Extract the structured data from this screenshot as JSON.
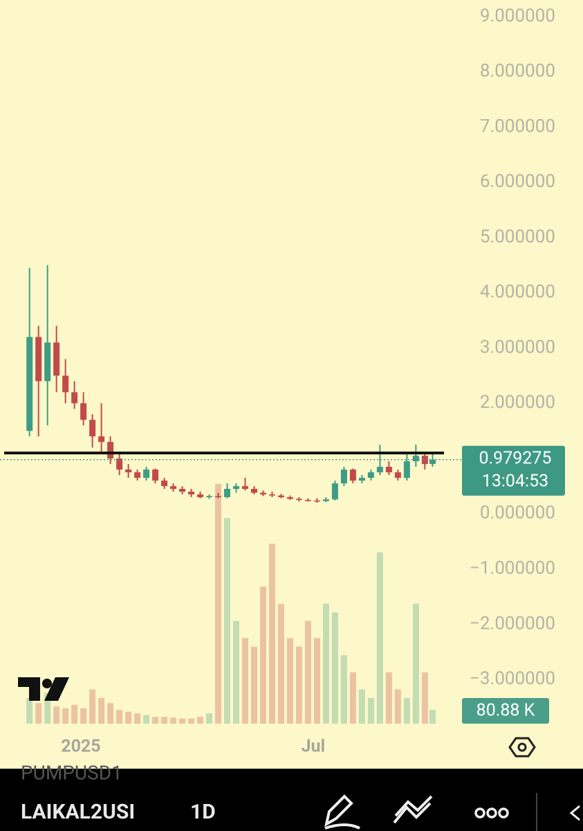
{
  "chart_data": {
    "type": "candlestick",
    "x": [
      -40,
      -33,
      -26,
      -19,
      -12,
      -5,
      2,
      9,
      16,
      23,
      30,
      37,
      44,
      51,
      58,
      65,
      72,
      79,
      86,
      93,
      100,
      107,
      114,
      121,
      128,
      135,
      142,
      149,
      156,
      163,
      170,
      177,
      184,
      191,
      198,
      205,
      212,
      219,
      226,
      233,
      240,
      247,
      254,
      261,
      268,
      274
    ],
    "open": [
      1.5,
      3.2,
      2.4,
      3.1,
      2.5,
      2.2,
      2.0,
      1.7,
      1.4,
      1.3,
      1.0,
      0.8,
      0.75,
      0.65,
      0.8,
      0.6,
      0.5,
      0.45,
      0.4,
      0.35,
      0.3,
      0.32,
      0.3,
      0.45,
      0.5,
      0.45,
      0.38,
      0.35,
      0.33,
      0.3,
      0.27,
      0.25,
      0.24,
      0.23,
      0.26,
      0.55,
      0.8,
      0.6,
      0.65,
      0.75,
      0.85,
      0.75,
      0.65,
      0.95,
      1.05,
      0.9
    ],
    "high": [
      4.45,
      3.4,
      4.5,
      3.4,
      2.8,
      2.4,
      2.2,
      1.8,
      2.0,
      1.4,
      1.1,
      0.9,
      0.8,
      0.85,
      0.82,
      0.65,
      0.55,
      0.5,
      0.45,
      0.4,
      0.35,
      0.38,
      0.55,
      0.55,
      0.65,
      0.5,
      0.42,
      0.4,
      0.36,
      0.33,
      0.3,
      0.28,
      0.28,
      0.3,
      0.6,
      0.85,
      0.82,
      0.7,
      0.8,
      1.25,
      0.95,
      0.8,
      1.1,
      1.25,
      1.1,
      1.1
    ],
    "low": [
      1.4,
      1.4,
      1.6,
      2.2,
      2.0,
      1.9,
      1.6,
      1.2,
      1.1,
      0.9,
      0.7,
      0.65,
      0.6,
      0.6,
      0.55,
      0.45,
      0.4,
      0.35,
      0.3,
      0.28,
      0.27,
      0.28,
      0.28,
      0.38,
      0.42,
      0.35,
      0.32,
      0.3,
      0.28,
      0.25,
      0.22,
      0.22,
      0.2,
      0.21,
      0.24,
      0.5,
      0.55,
      0.55,
      0.6,
      0.7,
      0.7,
      0.6,
      0.6,
      0.85,
      0.8,
      0.85
    ],
    "close": [
      3.2,
      2.4,
      3.1,
      2.5,
      2.2,
      2.0,
      1.7,
      1.4,
      1.3,
      1.0,
      0.8,
      0.75,
      0.65,
      0.8,
      0.6,
      0.5,
      0.45,
      0.4,
      0.35,
      0.3,
      0.32,
      0.3,
      0.45,
      0.5,
      0.45,
      0.38,
      0.35,
      0.33,
      0.3,
      0.27,
      0.25,
      0.24,
      0.23,
      0.26,
      0.55,
      0.8,
      0.6,
      0.65,
      0.75,
      0.85,
      0.75,
      0.65,
      0.95,
      1.05,
      0.9,
      0.979275
    ],
    "up_color": "#3f9c86",
    "down_color": "#c24a4b",
    "xlim": [
      -63,
      292.6
    ],
    "xticks": [
      {
        "value": 0,
        "label": "2025"
      },
      {
        "value": 181,
        "label": "Jul"
      }
    ],
    "ylim": [
      -3.8,
      9.3
    ],
    "yticks": [
      {
        "value": 9,
        "label": "9.000000"
      },
      {
        "value": 8,
        "label": "8.000000"
      },
      {
        "value": 7,
        "label": "7.000000"
      },
      {
        "value": 6,
        "label": "6.000000"
      },
      {
        "value": 5,
        "label": "5.000000"
      },
      {
        "value": 4,
        "label": "4.000000"
      },
      {
        "value": 3,
        "label": "3.000000"
      },
      {
        "value": 2,
        "label": "2.000000"
      },
      {
        "value": 0,
        "label": "0.000000"
      },
      {
        "value": -1,
        "label": "−1.000000"
      },
      {
        "value": -2,
        "label": "−2.000000"
      },
      {
        "value": -3,
        "label": "−3.000000"
      }
    ],
    "horizontal_line": 1.1,
    "last_price": 0.979275,
    "countdown": "13:04:53",
    "volume": {
      "values": [
        150,
        120,
        180,
        100,
        90,
        110,
        90,
        200,
        150,
        120,
        80,
        70,
        60,
        50,
        40,
        40,
        35,
        30,
        30,
        40,
        60,
        1400,
        1200,
        600,
        500,
        450,
        800,
        1050,
        700,
        500,
        450,
        600,
        500,
        700,
        650,
        400,
        300,
        200,
        150,
        1000,
        300,
        200,
        150,
        700,
        300,
        80.88
      ],
      "ylim": [
        0,
        1500
      ],
      "last_label": "80.88 K"
    }
  },
  "toolbar": {
    "symbol_prev": "PUMPUSD1",
    "symbol": "LAIKAL2USI",
    "interval": "1D"
  }
}
